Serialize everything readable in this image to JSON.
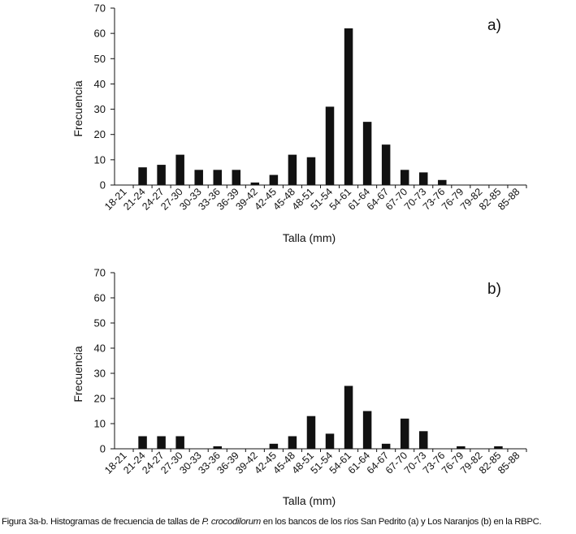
{
  "caption": {
    "prefix": "Figura 3a-b. Histogramas de frecuencia de tallas de ",
    "species": "P. crocodilorum",
    "suffix": " en los bancos de los ríos San Pedrito (a) y Los Naranjos (b) en la RBPC."
  },
  "chart_data": [
    {
      "type": "bar",
      "panel_label": "a)",
      "xlabel": "Talla (mm)",
      "ylabel": "Frecuencia",
      "ylim": [
        0,
        70
      ],
      "yticks": [
        0,
        10,
        20,
        30,
        40,
        50,
        60,
        70
      ],
      "categories": [
        "18-21",
        "21-24",
        "24-27",
        "27-30",
        "30-33",
        "33-36",
        "36-39",
        "39-42",
        "42-45",
        "45-48",
        "48-51",
        "51-54",
        "54-61",
        "61-64",
        "64-67",
        "67-70",
        "70-73",
        "73-76",
        "76-79",
        "79-82",
        "82-85",
        "85-88"
      ],
      "values": [
        0,
        7,
        8,
        12,
        6,
        6,
        6,
        1,
        4,
        12,
        11,
        31,
        62,
        25,
        16,
        6,
        5,
        2,
        0,
        0,
        0,
        0
      ],
      "color": "#111111"
    },
    {
      "type": "bar",
      "panel_label": "b)",
      "xlabel": "Talla (mm)",
      "ylabel": "Frecuencia",
      "ylim": [
        0,
        70
      ],
      "yticks": [
        0,
        10,
        20,
        30,
        40,
        50,
        60,
        70
      ],
      "categories": [
        "18-21",
        "21-24",
        "24-27",
        "27-30",
        "30-33",
        "33-36",
        "36-39",
        "39-42",
        "42-45",
        "45-48",
        "48-51",
        "51-54",
        "54-61",
        "61-64",
        "64-67",
        "67-70",
        "70-73",
        "73-76",
        "76-79",
        "79-82",
        "82-85",
        "85-88"
      ],
      "values": [
        0,
        5,
        5,
        5,
        0,
        1,
        0,
        0,
        2,
        5,
        13,
        6,
        25,
        15,
        2,
        12,
        7,
        0,
        1,
        0,
        1,
        0
      ],
      "color": "#111111"
    }
  ]
}
